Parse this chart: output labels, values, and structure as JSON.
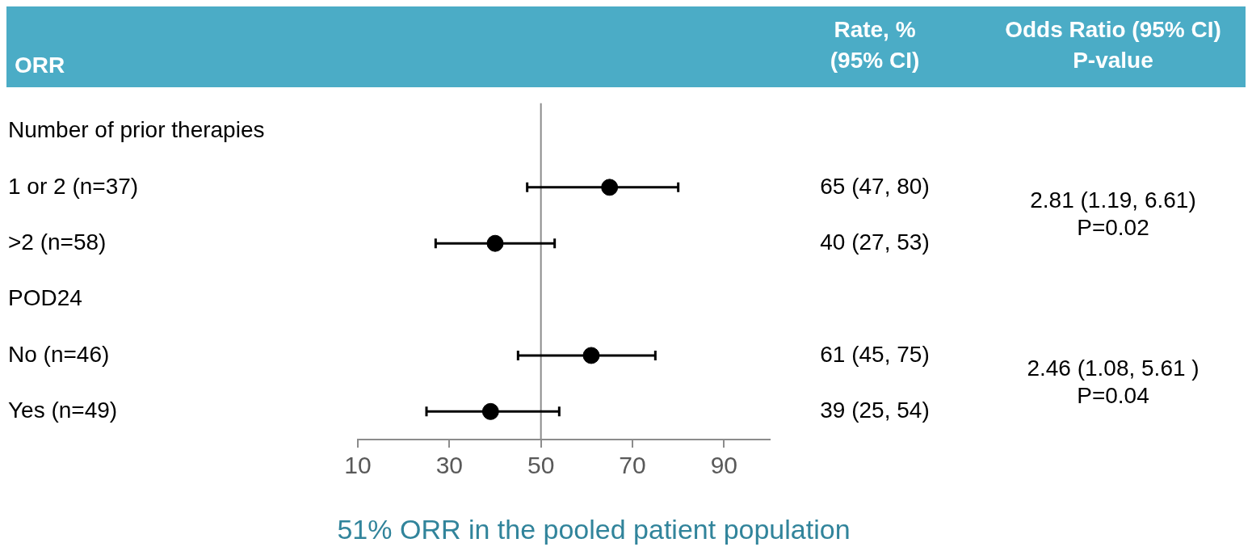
{
  "chart_data": {
    "type": "scatter",
    "orientation": "horizontal",
    "ylabel": "ORR",
    "categories": [
      "Number of prior therapies",
      "1 or 2 (n=37)",
      ">2 (n=58)",
      "POD24",
      "No (n=46)",
      "Yes (n=49)"
    ],
    "series": [
      {
        "color": "#000000",
        "values": [
          null,
          65,
          40,
          null,
          61,
          39
        ],
        "errors": [
          null,
          [
            47,
            80
          ],
          [
            27,
            53
          ],
          null,
          [
            45,
            75
          ],
          [
            25,
            54
          ]
        ],
        "value_labels": [
          null,
          "65 (47, 80)",
          "40 (27, 53)",
          null,
          "61 (45, 75)",
          "39 (25, 54)"
        ]
      }
    ],
    "xlim": [
      10,
      100
    ],
    "xticks": [
      10,
      30,
      50,
      70,
      90
    ],
    "grid": false,
    "legend": false,
    "marker": "circle",
    "ref_lines": [
      {
        "axis": "x",
        "value": 50,
        "color": "#8c8c8c"
      }
    ],
    "annotations": [
      "Rate, %\n(95% CI)",
      "Odds Ratio (95% CI)\nP-value",
      "2.81 (1.19, 6.61)",
      "P=0.02",
      "2.46 (1.08, 5.61 )",
      "P=0.04",
      "51% ORR in the pooled patient population"
    ]
  }
}
